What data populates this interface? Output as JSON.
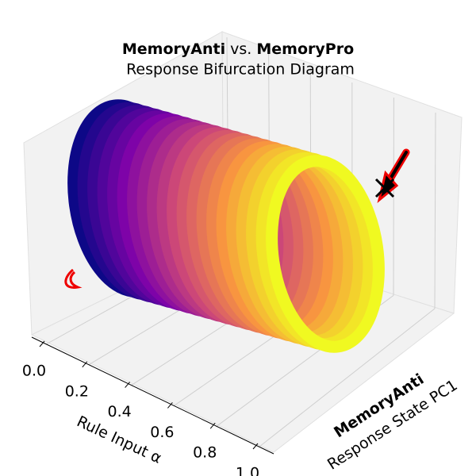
{
  "chart_data": {
    "type": "rings3d",
    "title": [
      {
        "text": "MemoryAnti",
        "bold": true
      },
      {
        "text": " vs. ",
        "bold": false
      },
      {
        "text": "MemoryPro",
        "bold": true
      }
    ],
    "subtitle": "Response Bifurcation Diagram",
    "xlabel": "Rule Input α",
    "ylabel": [
      {
        "text": "MemoryAnti",
        "bold": true
      },
      {
        "text": "Response State PC1",
        "bold": false
      }
    ],
    "x": [
      0,
      0.05,
      0.1,
      0.15,
      0.2,
      0.25,
      0.3,
      0.35,
      0.4,
      0.45,
      0.5,
      0.55,
      0.6,
      0.65,
      0.7,
      0.75,
      0.8,
      0.85,
      0.9,
      0.95,
      1
    ],
    "colormap": "plasma",
    "xlim": [
      0,
      1
    ],
    "xticks": [
      {
        "value": 0,
        "label": "0.0"
      },
      0.2,
      0.4,
      0.6,
      0.8,
      {
        "value": 1,
        "label": "1.0"
      }
    ],
    "grid": true
  }
}
